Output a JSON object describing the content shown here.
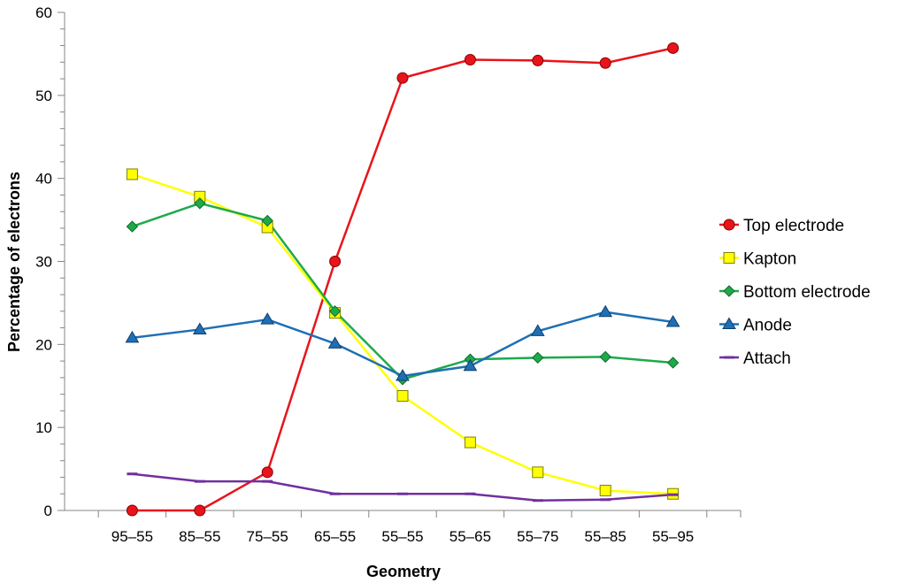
{
  "chart_data": {
    "type": "line",
    "title": "",
    "xlabel": "Geometry",
    "ylabel": "Percentage of electrons",
    "ylim": [
      0,
      60
    ],
    "yticks": [
      0,
      10,
      20,
      30,
      40,
      50,
      60
    ],
    "grid": false,
    "legend_position": "right",
    "categories": [
      "95–55",
      "85–55",
      "75–55",
      "65–55",
      "55–55",
      "55–65",
      "55–75",
      "55–85",
      "55–95"
    ],
    "series": [
      {
        "name": "Top electrode",
        "color": "#e8141b",
        "marker": "circle",
        "values": [
          0,
          0,
          4.6,
          30.0,
          52.1,
          54.3,
          54.2,
          53.9,
          55.7
        ]
      },
      {
        "name": "Kapton",
        "color": "#ffff00",
        "marker": "square",
        "values": [
          40.5,
          37.8,
          34.1,
          23.8,
          13.8,
          8.2,
          4.6,
          2.4,
          2.0
        ]
      },
      {
        "name": "Bottom electrode",
        "color": "#1eaa4a",
        "marker": "diamond",
        "values": [
          34.2,
          37.0,
          34.9,
          24.0,
          15.8,
          18.2,
          18.4,
          18.5,
          17.8
        ]
      },
      {
        "name": "Anode",
        "color": "#1f6fb4",
        "marker": "triangle",
        "values": [
          20.8,
          21.8,
          23.0,
          20.1,
          16.2,
          17.4,
          21.6,
          23.9,
          22.7
        ]
      },
      {
        "name": "Attach",
        "color": "#7030a0",
        "marker": "dash",
        "values": [
          4.4,
          3.5,
          3.5,
          2.0,
          2.0,
          2.0,
          1.2,
          1.3,
          1.9
        ]
      }
    ]
  }
}
